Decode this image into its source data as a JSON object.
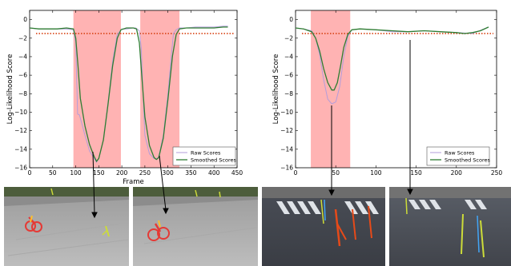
{
  "chart_data": [
    {
      "type": "line",
      "xlabel": "Frame",
      "ylabel": "Log-Likelihood Score",
      "xlim": [
        0,
        450
      ],
      "ylim": [
        -16,
        1
      ],
      "xticks": [
        0,
        50,
        100,
        150,
        200,
        250,
        300,
        350,
        400,
        450
      ],
      "yticks": [
        0,
        -2,
        -4,
        -6,
        -8,
        -10,
        -12,
        -14,
        -16
      ],
      "threshold": -1.5,
      "anomaly_regions": [
        [
          95,
          198
        ],
        [
          240,
          325
        ]
      ],
      "legend_position": "bottom-right",
      "series": [
        {
          "name": "Raw Scores",
          "color": "#b39ddb",
          "x": [
            0,
            20,
            40,
            60,
            80,
            95,
            100,
            104,
            108,
            120,
            130,
            140,
            145,
            150,
            160,
            170,
            180,
            190,
            200,
            210,
            225,
            230,
            238,
            242,
            246,
            250,
            260,
            270,
            275,
            280,
            290,
            300,
            308,
            312,
            318,
            325,
            340,
            360,
            380,
            400,
            420,
            430
          ],
          "y": [
            -0.9,
            -1.0,
            -1.0,
            -1.0,
            -1.0,
            -1.1,
            -2.5,
            -10.2,
            -10.3,
            -12.5,
            -14.2,
            -15.0,
            -15.4,
            -15.0,
            -13.0,
            -9.0,
            -4.5,
            -1.6,
            -1.0,
            -1.0,
            -0.9,
            -0.9,
            -1.2,
            -3.0,
            -8.0,
            -12.5,
            -14.5,
            -15.0,
            -15.1,
            -14.8,
            -12.5,
            -8.0,
            -3.5,
            -1.5,
            -1.1,
            -0.9,
            -0.9,
            -0.8,
            -0.8,
            -0.8,
            -0.7,
            -0.7
          ]
        },
        {
          "name": "Smoothed Scores",
          "color": "#2e7d32",
          "x": [
            0,
            20,
            40,
            60,
            80,
            95,
            100,
            105,
            110,
            120,
            130,
            140,
            145,
            150,
            160,
            170,
            180,
            190,
            198,
            210,
            225,
            232,
            238,
            244,
            250,
            260,
            270,
            275,
            280,
            290,
            300,
            310,
            318,
            325,
            340,
            360,
            380,
            400,
            420,
            430
          ],
          "y": [
            -0.9,
            -1.0,
            -1.0,
            -1.0,
            -0.9,
            -1.0,
            -2.0,
            -5.0,
            -8.5,
            -11.5,
            -13.5,
            -14.8,
            -15.3,
            -15.0,
            -13.0,
            -9.2,
            -5.0,
            -2.0,
            -1.1,
            -0.9,
            -0.9,
            -1.0,
            -2.5,
            -6.5,
            -10.5,
            -13.6,
            -14.9,
            -15.1,
            -14.9,
            -12.8,
            -8.6,
            -3.9,
            -1.6,
            -1.0,
            -0.9,
            -0.9,
            -0.9,
            -0.9,
            -0.8,
            -0.8
          ]
        }
      ]
    },
    {
      "type": "line",
      "xlabel": "",
      "ylabel": "Log-Likelihood Score",
      "xlim": [
        0,
        250
      ],
      "ylim": [
        -16,
        1
      ],
      "xticks": [
        0,
        50,
        100,
        150,
        200,
        250
      ],
      "yticks": [
        0,
        -2,
        -4,
        -6,
        -8,
        -10,
        -12,
        -14,
        -16
      ],
      "threshold": -1.5,
      "anomaly_regions": [
        [
          19,
          68
        ]
      ],
      "legend_position": "bottom-right",
      "series": [
        {
          "name": "Raw Scores",
          "color": "#b39ddb",
          "x": [
            0,
            10,
            20,
            25,
            30,
            35,
            40,
            45,
            50,
            55,
            60,
            65,
            70,
            80,
            100,
            120,
            140,
            160,
            180,
            200,
            220,
            240
          ],
          "y": [
            -0.9,
            -1.0,
            -1.2,
            -2.0,
            -3.8,
            -6.5,
            -8.6,
            -9.1,
            -8.9,
            -7.2,
            -4.0,
            -1.8,
            -1.1,
            -1.0,
            -1.1,
            -1.3,
            -1.3,
            -1.2,
            -1.3,
            -1.4,
            -1.5,
            -0.8
          ]
        },
        {
          "name": "Smoothed Scores",
          "color": "#2e7d32",
          "x": [
            0,
            10,
            20,
            25,
            30,
            35,
            40,
            45,
            48,
            52,
            56,
            60,
            65,
            70,
            80,
            100,
            120,
            140,
            160,
            180,
            200,
            210,
            220,
            230,
            240
          ],
          "y": [
            -0.9,
            -1.0,
            -1.3,
            -2.0,
            -3.4,
            -5.3,
            -6.8,
            -7.6,
            -7.6,
            -6.8,
            -5.0,
            -3.0,
            -1.6,
            -1.1,
            -1.0,
            -1.1,
            -1.2,
            -1.3,
            -1.2,
            -1.3,
            -1.4,
            -1.5,
            -1.4,
            -1.2,
            -0.8
          ]
        }
      ]
    }
  ]
}
